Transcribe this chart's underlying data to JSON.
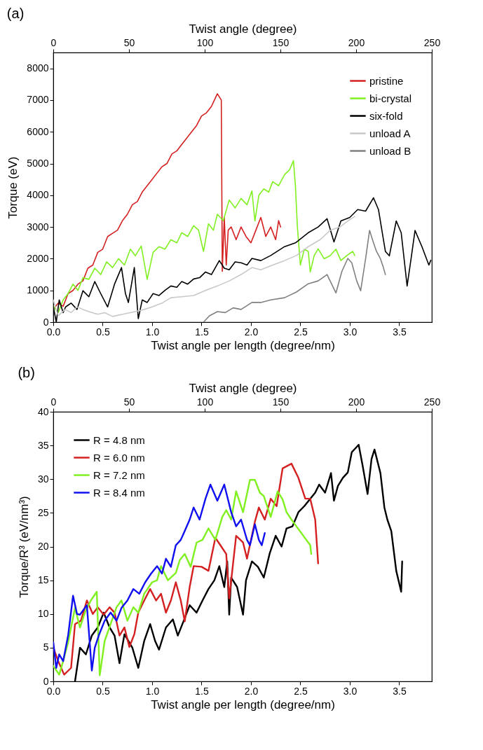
{
  "chart_data": [
    {
      "type": "line",
      "title": "(a)",
      "xlabel": "Twist angle per length (degree/nm)",
      "ylabel": "Torque (eV)",
      "x2label": "Twist angle  (degree)",
      "xlim": [
        0,
        3.83
      ],
      "xticks": [
        {
          "value": 0,
          "label": "0.0"
        },
        0.5,
        {
          "value": 1,
          "label": "1.0"
        },
        1.5,
        {
          "value": 2,
          "label": "2.0"
        },
        2.5,
        {
          "value": 3,
          "label": "3.0"
        },
        3.5
      ],
      "x2lim": [
        0,
        250
      ],
      "x2ticks": [
        0,
        50,
        100,
        150,
        200,
        250
      ],
      "ylim": [
        0,
        8500
      ],
      "yticks": [
        0,
        1000,
        2000,
        3000,
        4000,
        5000,
        6000,
        7000,
        8000
      ],
      "legend": "top right",
      "series": [
        {
          "name": "pristine",
          "color": "#d42020",
          "x": [
            0,
            0.05,
            0.1,
            0.15,
            0.2,
            0.25,
            0.3,
            0.35,
            0.4,
            0.45,
            0.5,
            0.55,
            0.6,
            0.65,
            0.7,
            0.75,
            0.8,
            0.85,
            0.9,
            0.95,
            1.0,
            1.05,
            1.1,
            1.15,
            1.2,
            1.25,
            1.3,
            1.35,
            1.4,
            1.45,
            1.5,
            1.55,
            1.6,
            1.63,
            1.66,
            1.69,
            1.7,
            1.71,
            1.73,
            1.75,
            1.77,
            1.8,
            1.85,
            1.9,
            1.95,
            2.0,
            2.05,
            2.1,
            2.15,
            2.2,
            2.25,
            2.28,
            2.3
          ],
          "values": [
            400,
            600,
            500,
            900,
            1000,
            1200,
            1300,
            1700,
            1800,
            2200,
            2300,
            2700,
            2800,
            2900,
            3200,
            3400,
            3700,
            3800,
            4100,
            4300,
            4500,
            4700,
            4900,
            5000,
            5300,
            5400,
            5600,
            5800,
            6000,
            6200,
            6500,
            6600,
            6800,
            7000,
            7200,
            7050,
            7000,
            1600,
            3300,
            1800,
            2900,
            3000,
            2600,
            3000,
            2700,
            2500,
            2900,
            3300,
            2700,
            3000,
            2600,
            3200,
            3000
          ]
        },
        {
          "name": "bi-crystal",
          "color": "#80f020",
          "x": [
            0,
            0.05,
            0.1,
            0.15,
            0.2,
            0.25,
            0.3,
            0.36,
            0.42,
            0.48,
            0.54,
            0.6,
            0.66,
            0.72,
            0.78,
            0.83,
            0.89,
            0.95,
            1.01,
            1.07,
            1.13,
            1.19,
            1.25,
            1.3,
            1.36,
            1.42,
            1.47,
            1.52,
            1.57,
            1.62,
            1.66,
            1.72,
            1.78,
            1.84,
            1.9,
            1.96,
            2.01,
            2.04,
            2.08,
            2.13,
            2.18,
            2.22,
            2.28,
            2.34,
            2.39,
            2.43,
            2.45,
            2.47,
            2.5,
            2.54,
            2.58,
            2.6,
            2.64,
            2.68,
            2.74,
            2.8,
            2.86,
            2.91,
            2.97,
            3.03,
            3.05
          ],
          "values": [
            500,
            300,
            700,
            900,
            1200,
            1000,
            1400,
            1350,
            1700,
            1500,
            1900,
            1720,
            2000,
            1800,
            2300,
            2090,
            2400,
            1350,
            2200,
            2380,
            2300,
            2600,
            2500,
            2820,
            2700,
            3040,
            2900,
            2230,
            3100,
            2900,
            3400,
            3200,
            3850,
            3600,
            3900,
            3700,
            4140,
            3190,
            4000,
            4200,
            4100,
            4430,
            4300,
            4650,
            4800,
            5090,
            4290,
            3000,
            1800,
            2300,
            2230,
            1580,
            2100,
            2310,
            2000,
            2090,
            2300,
            1940,
            2100,
            2230,
            2100
          ]
        },
        {
          "name": "six-fold",
          "color": "#000000",
          "x": [
            0,
            0.03,
            0.06,
            0.1,
            0.125,
            0.18,
            0.24,
            0.3,
            0.36,
            0.42,
            0.48,
            0.55,
            0.62,
            0.69,
            0.73,
            0.76,
            0.82,
            0.86,
            0.9,
            0.95,
            1.01,
            1.07,
            1.13,
            1.19,
            1.25,
            1.3,
            1.36,
            1.42,
            1.48,
            1.54,
            1.6,
            1.68,
            1.73,
            1.78,
            1.84,
            1.9,
            1.96,
            2.01,
            2.1,
            2.2,
            2.34,
            2.45,
            2.58,
            2.68,
            2.77,
            2.84,
            2.91,
            3.0,
            3.08,
            3.16,
            3.24,
            3.29,
            3.36,
            3.4,
            3.47,
            3.52,
            3.58,
            3.62,
            3.66,
            3.73,
            3.8,
            3.82
          ],
          "values": [
            500,
            0,
            700,
            300,
            480,
            600,
            400,
            990,
            800,
            1280,
            900,
            480,
            1200,
            1720,
            900,
            620,
            1720,
            110,
            700,
            620,
            900,
            840,
            1000,
            1140,
            1100,
            1280,
            1200,
            1360,
            1400,
            1580,
            1500,
            1940,
            1700,
            1650,
            1900,
            1870,
            1800,
            2010,
            1940,
            2100,
            2380,
            2500,
            2820,
            3000,
            3260,
            2530,
            3190,
            3300,
            3550,
            3500,
            3920,
            3550,
            2230,
            2090,
            3190,
            2820,
            1140,
            2000,
            2890,
            2380,
            1800,
            1950
          ]
        },
        {
          "name": "unload A",
          "color": "#c8c8c8",
          "x": [
            0,
            0.05,
            0.12,
            0.18,
            0.24,
            0.3,
            0.36,
            0.45,
            0.52,
            0.6,
            0.7,
            0.83,
            0.92,
            1.0,
            1.1,
            1.19,
            1.3,
            1.42,
            1.54,
            1.66,
            1.78,
            1.9,
            2.01,
            2.1,
            2.22,
            2.34,
            2.46,
            2.58,
            2.7,
            2.8,
            2.9,
            2.98,
            3.05
          ],
          "values": [
            700,
            200,
            400,
            300,
            480,
            400,
            330,
            250,
            300,
            180,
            250,
            330,
            400,
            480,
            600,
            770,
            800,
            840,
            1000,
            1140,
            1300,
            1500,
            1720,
            1650,
            1800,
            1940,
            2100,
            2380,
            2600,
            2890,
            3000,
            3190,
            3330
          ]
        },
        {
          "name": "unload B",
          "color": "#808080",
          "x": [
            1.52,
            1.58,
            1.66,
            1.74,
            1.82,
            1.9,
            2.01,
            2.1,
            2.2,
            2.34,
            2.46,
            2.58,
            2.68,
            2.77,
            2.86,
            2.92,
            2.98,
            3.02,
            3.07,
            3.11,
            3.16,
            3.2,
            3.24,
            3.27,
            3.31,
            3.34,
            3.36
          ],
          "values": [
            0,
            200,
            330,
            300,
            450,
            400,
            620,
            620,
            700,
            770,
            950,
            1210,
            1300,
            1500,
            920,
            1600,
            2010,
            1870,
            1300,
            990,
            2000,
            2890,
            2500,
            2230,
            2000,
            1720,
            1500
          ]
        }
      ]
    },
    {
      "type": "line",
      "title": "(b)",
      "xlabel": "Twist angle per length (degree/nm)",
      "ylabel": "Torque/R³ (eV/nm³)",
      "x2label": "Twist angle (degree)",
      "xlim": [
        0,
        3.83
      ],
      "xticks": [
        {
          "value": 0,
          "label": "0.0"
        },
        0.5,
        {
          "value": 1,
          "label": "1.0"
        },
        1.5,
        {
          "value": 2,
          "label": "2.0"
        },
        2.5,
        {
          "value": 3,
          "label": "3.0"
        },
        3.5
      ],
      "x2lim": [
        0,
        250
      ],
      "x2ticks": [
        0,
        50,
        100,
        150,
        200,
        250
      ],
      "ylim": [
        0,
        40
      ],
      "yticks": [
        0,
        5,
        10,
        15,
        20,
        25,
        30,
        35,
        40
      ],
      "legend": "top left",
      "series": [
        {
          "name": "R = 4.8 nm",
          "color": "#000000",
          "x": [
            0.22,
            0.27,
            0.33,
            0.39,
            0.45,
            0.51,
            0.57,
            0.62,
            0.67,
            0.72,
            0.8,
            0.86,
            0.92,
            0.98,
            1.03,
            1.07,
            1.14,
            1.21,
            1.26,
            1.32,
            1.38,
            1.45,
            1.51,
            1.57,
            1.63,
            1.68,
            1.73,
            1.76,
            1.78,
            1.8,
            1.86,
            1.92,
            1.95,
            2.01,
            2.07,
            2.13,
            2.19,
            2.25,
            2.31,
            2.36,
            2.42,
            2.48,
            2.54,
            2.6,
            2.65,
            2.69,
            2.75,
            2.81,
            2.84,
            2.88,
            2.93,
            2.98,
            3.02,
            3.09,
            3.13,
            3.18,
            3.22,
            3.25,
            3.31,
            3.35,
            3.38,
            3.42,
            3.47,
            3.52,
            3.53
          ],
          "values": [
            0,
            5,
            4,
            6.8,
            8,
            10.2,
            8,
            6.8,
            2.7,
            7,
            5,
            2,
            6,
            8.5,
            6,
            4.7,
            8,
            9.2,
            6.8,
            9,
            11.3,
            10.2,
            12,
            13.7,
            15,
            17.1,
            14,
            17.8,
            9.9,
            15.4,
            14,
            9.9,
            15,
            17.8,
            17,
            15.4,
            19,
            21.6,
            20,
            22.7,
            23,
            25.1,
            26,
            27.1,
            28,
            29.2,
            28,
            30.9,
            26.8,
            29,
            30.2,
            31,
            34,
            35.1,
            32,
            27.8,
            33,
            34.4,
            30.9,
            25.8,
            24,
            22.3,
            16.4,
            13.3,
            17.8
          ]
        },
        {
          "name": "R = 6.0 nm",
          "color": "#d42020",
          "x": [
            0,
            0.05,
            0.11,
            0.18,
            0.22,
            0.28,
            0.34,
            0.4,
            0.45,
            0.51,
            0.57,
            0.62,
            0.67,
            0.72,
            0.77,
            0.82,
            0.86,
            0.92,
            0.98,
            1.04,
            1.09,
            1.14,
            1.19,
            1.24,
            1.29,
            1.33,
            1.38,
            1.42,
            1.5,
            1.57,
            1.64,
            1.7,
            1.75,
            1.78,
            1.85,
            1.92,
            1.96,
            2.04,
            2.08,
            2.14,
            2.2,
            2.26,
            2.32,
            2.41,
            2.48,
            2.55,
            2.6,
            2.65,
            2.68
          ],
          "values": [
            5,
            3,
            1,
            2,
            8.5,
            9,
            12,
            10,
            11,
            9.9,
            11,
            10.2,
            6.8,
            8,
            5.1,
            7,
            10.2,
            12,
            13.7,
            12,
            13,
            10.2,
            12,
            14.7,
            12,
            8.9,
            14,
            17.1,
            17,
            16.4,
            21.3,
            20,
            18.9,
            12.3,
            21.6,
            20.6,
            18.2,
            23.7,
            25.8,
            24,
            27.1,
            26,
            31.6,
            32.3,
            30.2,
            27.1,
            27.1,
            24,
            17.5
          ]
        },
        {
          "name": "R = 7.2 nm",
          "color": "#80f020",
          "x": [
            0,
            0.06,
            0.1,
            0.15,
            0.22,
            0.27,
            0.32,
            0.38,
            0.44,
            0.47,
            0.52,
            0.58,
            0.64,
            0.69,
            0.75,
            0.81,
            0.86,
            0.92,
            1.0,
            1.05,
            1.09,
            1.16,
            1.24,
            1.28,
            1.33,
            1.39,
            1.45,
            1.51,
            1.57,
            1.64,
            1.71,
            1.75,
            1.8,
            1.85,
            1.92,
            1.99,
            2.04,
            2.09,
            2.13,
            2.2,
            2.27,
            2.32,
            2.36,
            2.41,
            2.46,
            2.53,
            2.6,
            2.61
          ],
          "values": [
            2.3,
            1,
            3,
            5.8,
            10.9,
            8,
            10.2,
            12,
            13.3,
            0.9,
            6,
            8.5,
            11,
            12,
            9,
            11,
            10.2,
            13,
            14.7,
            15,
            17.1,
            15,
            16.1,
            18,
            18.9,
            17,
            20.6,
            21,
            22.7,
            21,
            24.4,
            25.4,
            24,
            28.2,
            25.1,
            29.9,
            29.9,
            28,
            27.5,
            24.4,
            28.2,
            27,
            25.1,
            24,
            23,
            21.6,
            20.2,
            18.9
          ]
        },
        {
          "name": "R = 8.4 nm",
          "color": "#1010f0",
          "x": [
            0,
            0.03,
            0.06,
            0.1,
            0.15,
            0.2,
            0.24,
            0.27,
            0.34,
            0.39,
            0.42,
            0.46,
            0.52,
            0.58,
            0.64,
            0.69,
            0.75,
            0.81,
            0.87,
            0.93,
            0.99,
            1.05,
            1.1,
            1.14,
            1.19,
            1.24,
            1.29,
            1.33,
            1.38,
            1.42,
            1.48,
            1.54,
            1.59,
            1.66,
            1.73,
            1.8,
            1.85,
            1.9,
            1.96,
            1.99,
            2.04,
            2.08,
            2.11,
            2.14
          ],
          "values": [
            5.8,
            2,
            4,
            3,
            6.8,
            12.7,
            10,
            9.9,
            11.3,
            1.6,
            5,
            6.8,
            9,
            10.2,
            9,
            10.9,
            12,
            13.7,
            13,
            14.7,
            16,
            17.1,
            16,
            18.2,
            17,
            20.2,
            21,
            22.3,
            24,
            25.8,
            24,
            27.1,
            29.2,
            26.8,
            29.2,
            25.1,
            23,
            24,
            21,
            20.2,
            23.3,
            21,
            20.2,
            22
          ]
        }
      ]
    }
  ]
}
